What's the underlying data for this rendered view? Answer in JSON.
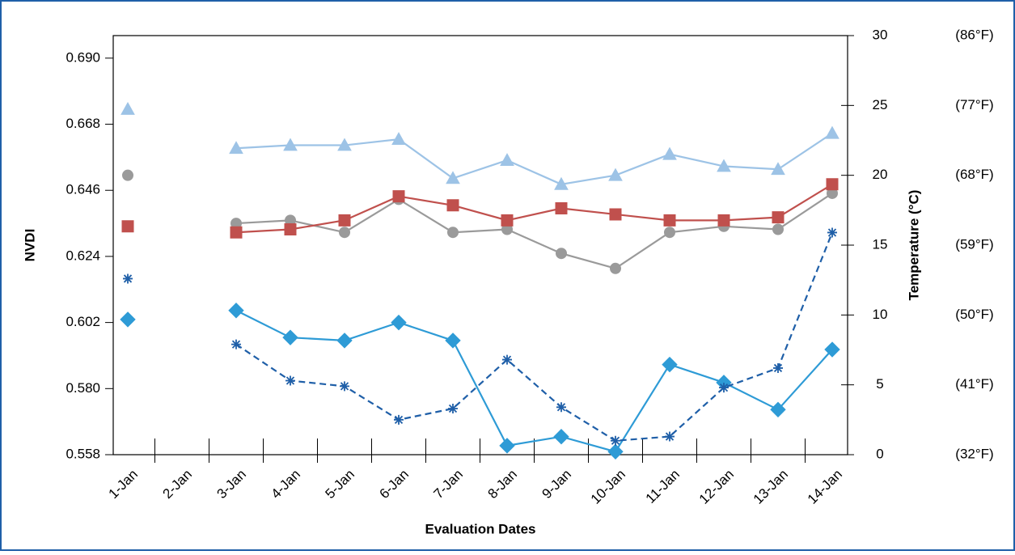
{
  "chart_data": {
    "type": "line",
    "x_label": "Evaluation Dates",
    "y_label": "NVDI",
    "y2_label": "Temperature (°C)",
    "categories": [
      "1-Jan",
      "2-Jan",
      "3-Jan",
      "4-Jan",
      "5-Jan",
      "6-Jan",
      "7-Jan",
      "8-Jan",
      "9-Jan",
      "10-Jan",
      "11-Jan",
      "12-Jan",
      "13-Jan",
      "14-Jan"
    ],
    "ylim": [
      0.558,
      0.6975
    ],
    "yticks": [
      0.558,
      {
        "value": 0.58,
        "label": "0.580"
      },
      0.602,
      0.624,
      0.646,
      0.668,
      {
        "value": 0.69,
        "label": "0.690"
      }
    ],
    "y2lim": [
      0,
      30
    ],
    "y2ticks": [
      0,
      5,
      10,
      15,
      20,
      25,
      30
    ],
    "y2_fahrenheit_labels": [
      "(32°F)",
      "(41°F)",
      "(50°F)",
      "(59°F)",
      "(68°F)",
      "(77°F)",
      "(86°F)"
    ],
    "series": [
      {
        "color": "#9dc3e6",
        "marker": "triangle",
        "values": [
          0.673,
          null,
          0.66,
          0.661,
          0.661,
          0.663,
          0.65,
          0.656,
          0.648,
          0.651,
          0.658,
          0.654,
          0.653,
          0.665
        ]
      },
      {
        "color": "#9a9a9a",
        "marker": "circle",
        "values": [
          0.651,
          null,
          0.635,
          0.636,
          0.632,
          0.643,
          0.632,
          0.633,
          0.625,
          0.62,
          0.632,
          0.634,
          0.633,
          0.645
        ]
      },
      {
        "color": "#c0504d",
        "marker": "square",
        "values": [
          0.634,
          null,
          0.632,
          0.633,
          0.636,
          0.644,
          0.641,
          0.636,
          0.64,
          0.638,
          0.636,
          0.636,
          0.637,
          0.648
        ]
      },
      {
        "color": "#2e9bd6",
        "marker": "diamond",
        "values": [
          0.603,
          null,
          0.606,
          0.597,
          0.596,
          0.602,
          0.596,
          0.561,
          0.564,
          0.559,
          0.588,
          0.582,
          0.573,
          0.593
        ]
      },
      {
        "color": "#1f5fa8",
        "marker": "asterisk",
        "dashed": true,
        "axis": "y2",
        "values": [
          12.6,
          null,
          7.9,
          5.3,
          4.9,
          2.5,
          3.3,
          6.8,
          3.4,
          1.0,
          1.3,
          4.8,
          6.2,
          15.9
        ]
      }
    ]
  }
}
